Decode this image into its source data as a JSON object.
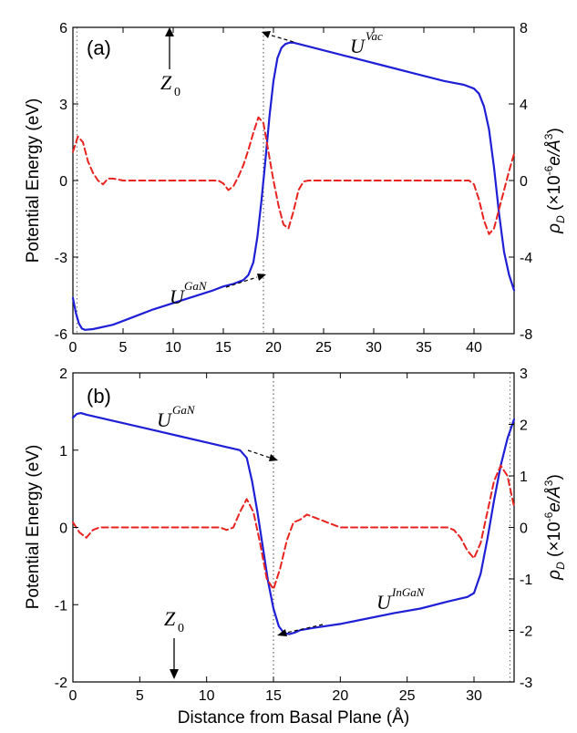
{
  "chart_data": [
    {
      "type": "line",
      "panel_label": "(a)",
      "xlabel": "",
      "ylabel": "Potential Energy (eV)",
      "ylabel_right_parts": {
        "rho": "ρ",
        "sub": "D",
        "paren_open": " (×10",
        "exp": "-6",
        "unit": "e/Å",
        "unit_exp": "3",
        "paren_close": ")"
      },
      "xlim": [
        0,
        44
      ],
      "ylim": [
        -6,
        6
      ],
      "ylim_right": [
        -8,
        8
      ],
      "xticks": [
        0,
        5,
        10,
        15,
        20,
        25,
        30,
        35,
        40
      ],
      "yticks": [
        -6,
        -3,
        0,
        3,
        6
      ],
      "yticks_right": [
        -8,
        -4,
        0,
        4,
        8
      ],
      "vline_x": 19,
      "left_vline_x": 0.4,
      "annotations": {
        "z0": {
          "main": "Z",
          "sub": "0"
        },
        "u_gan": {
          "main": "U",
          "sup": "GaN"
        },
        "u_vac": {
          "main": "U",
          "sup": "Vac"
        }
      },
      "series": [
        {
          "color": "#1f1fd6",
          "style": "solid",
          "axis": "left",
          "x": [
            0,
            0.3,
            0.6,
            0.9,
            1.2,
            2,
            4,
            6,
            8,
            10,
            12,
            14,
            15,
            16,
            17,
            17.5,
            18,
            18.4,
            18.8,
            19.2,
            19.6,
            20,
            20.4,
            20.8,
            21.2,
            21.6,
            22,
            23,
            25,
            28,
            31,
            34,
            37,
            39,
            40,
            40.5,
            41,
            41.5,
            42,
            42.5,
            43,
            43.5,
            44
          ],
          "y": [
            -4.6,
            -5.2,
            -5.6,
            -5.8,
            -5.85,
            -5.82,
            -5.65,
            -5.35,
            -5.05,
            -4.8,
            -4.55,
            -4.3,
            -4.15,
            -4.05,
            -3.9,
            -3.7,
            -3.2,
            -2.2,
            -0.8,
            0.8,
            2.5,
            3.9,
            4.8,
            5.2,
            5.35,
            5.4,
            5.4,
            5.3,
            5.1,
            4.8,
            4.5,
            4.2,
            3.9,
            3.75,
            3.6,
            3.4,
            2.9,
            2.0,
            0.5,
            -1.3,
            -2.8,
            -3.7,
            -4.3
          ]
        },
        {
          "color": "#e8231f",
          "style": "dashed",
          "axis": "right",
          "x": [
            0,
            0.5,
            1,
            1.5,
            2,
            2.5,
            3,
            3.5,
            4,
            5,
            7,
            10,
            13,
            14.5,
            15,
            15.5,
            16,
            16.5,
            17,
            17.5,
            18,
            18.5,
            19,
            19.5,
            20,
            20.5,
            21,
            21.5,
            22,
            22.5,
            23,
            23.5,
            24,
            26,
            30,
            35,
            38,
            39.5,
            40,
            40.5,
            41,
            41.5,
            42,
            42.5,
            43,
            43.5,
            44
          ],
          "y": [
            1.5,
            2.3,
            2.0,
            1.0,
            0.4,
            0.0,
            -0.2,
            0.1,
            0.1,
            0.0,
            0.0,
            0.0,
            0.0,
            0.0,
            -0.15,
            -0.5,
            -0.3,
            0.2,
            0.8,
            1.6,
            2.5,
            3.3,
            3.0,
            1.5,
            0.0,
            -1.3,
            -2.3,
            -2.5,
            -1.6,
            -0.5,
            -0.05,
            0.0,
            0.0,
            0.0,
            0.0,
            0.0,
            0.0,
            0.0,
            -0.2,
            -1.0,
            -2.1,
            -2.8,
            -2.5,
            -1.5,
            -0.5,
            0.5,
            1.4
          ]
        }
      ]
    },
    {
      "type": "line",
      "panel_label": "(b)",
      "xlabel": "Distance from Basal Plane (Å)",
      "ylabel": "Potential Energy (eV)",
      "ylabel_right_parts": {
        "rho": "ρ",
        "sub": "D",
        "paren_open": " (×10",
        "exp": "-6",
        "unit": "e/Å",
        "unit_exp": "3",
        "paren_close": ")"
      },
      "xlim": [
        0,
        33
      ],
      "ylim": [
        -2,
        2
      ],
      "ylim_right": [
        -3,
        3
      ],
      "xticks": [
        0,
        5,
        10,
        15,
        20,
        25,
        30
      ],
      "yticks": [
        -2,
        -1,
        0,
        1,
        2
      ],
      "yticks_right": [
        -3,
        -2,
        -1,
        0,
        1,
        2,
        3
      ],
      "vline_x": 15,
      "right_vline_x": 32.7,
      "annotations": {
        "z0": {
          "main": "Z",
          "sub": "0"
        },
        "u_gan": {
          "main": "U",
          "sup": "GaN"
        },
        "u_ingan": {
          "main": "U",
          "sup": "InGaN"
        }
      },
      "series": [
        {
          "color": "#1f1fd6",
          "style": "solid",
          "axis": "left",
          "x": [
            0,
            0.3,
            0.6,
            1,
            2,
            4,
            6,
            8,
            10,
            11.5,
            12.5,
            13,
            13.4,
            13.8,
            14.2,
            14.6,
            15,
            15.4,
            15.8,
            16.2,
            16.6,
            17,
            18,
            20,
            22,
            24,
            26,
            28,
            29.5,
            30,
            30.5,
            31,
            31.5,
            32,
            32.5,
            33
          ],
          "y": [
            1.42,
            1.47,
            1.48,
            1.46,
            1.42,
            1.34,
            1.26,
            1.18,
            1.1,
            1.04,
            1.0,
            0.9,
            0.6,
            0.2,
            -0.25,
            -0.7,
            -1.05,
            -1.28,
            -1.37,
            -1.38,
            -1.36,
            -1.33,
            -1.3,
            -1.25,
            -1.18,
            -1.11,
            -1.05,
            -0.96,
            -0.9,
            -0.85,
            -0.6,
            -0.15,
            0.35,
            0.8,
            1.15,
            1.4
          ]
        },
        {
          "color": "#e8231f",
          "style": "dashed",
          "axis": "right",
          "x": [
            0,
            0.5,
            1,
            1.5,
            2,
            3,
            5,
            8,
            10,
            11,
            11.5,
            12,
            12.5,
            13,
            13.5,
            14,
            14.5,
            15,
            15.5,
            16,
            16.5,
            17,
            17.5,
            18,
            19,
            20,
            22,
            25,
            27,
            28,
            28.5,
            29,
            29.5,
            30,
            30.5,
            31,
            31.5,
            32,
            32.5,
            33
          ],
          "y": [
            0.1,
            -0.1,
            -0.2,
            -0.05,
            0.0,
            0.0,
            0.0,
            0.0,
            0.0,
            0.0,
            -0.05,
            0.0,
            0.3,
            0.55,
            0.3,
            -0.3,
            -1.0,
            -1.2,
            -0.8,
            -0.25,
            0.1,
            0.15,
            0.25,
            0.2,
            0.1,
            0.0,
            0.0,
            0.0,
            0.0,
            0.0,
            -0.05,
            -0.2,
            -0.45,
            -0.6,
            -0.3,
            0.3,
            0.9,
            1.2,
            1.0,
            0.4
          ]
        }
      ]
    }
  ]
}
